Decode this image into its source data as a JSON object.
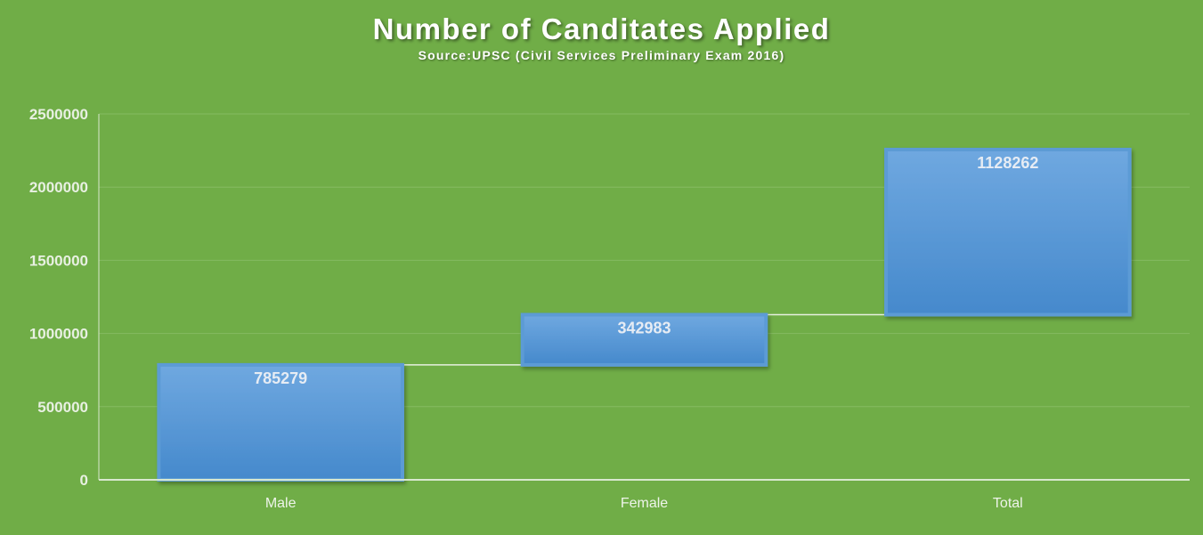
{
  "title": "Number of Canditates Applied",
  "subtitle": "Source:UPSC (Civil Services Preliminary Exam 2016)",
  "colors": {
    "background": "#70ad47",
    "bar_fill_top": "#6fa8e0",
    "bar_fill_bottom": "#4589cc",
    "bar_border": "#5b9bd5",
    "gridline": "#85bb62",
    "axis": "#d9e8cf",
    "connector": "#e6f0df"
  },
  "chart_data": {
    "type": "bar",
    "subtype": "waterfall",
    "title": "Number of Canditates Applied",
    "subtitle": "Source:UPSC (Civil Services Preliminary Exam 2016)",
    "categories": [
      "Male",
      "Female",
      "Total"
    ],
    "values": [
      785279,
      342983,
      1128262
    ],
    "data_labels": [
      "785279",
      "342983",
      "1128262"
    ],
    "bar_ranges": [
      [
        0,
        785279
      ],
      [
        785279,
        1128262
      ],
      [
        1128262,
        2256524
      ]
    ],
    "y_ticks": [
      "0",
      "500000",
      "1000000",
      "1500000",
      "2000000",
      "2500000"
    ],
    "ylim": [
      0,
      2500000
    ],
    "xlabel": "",
    "ylabel": "",
    "grid": true,
    "legend": "none"
  }
}
